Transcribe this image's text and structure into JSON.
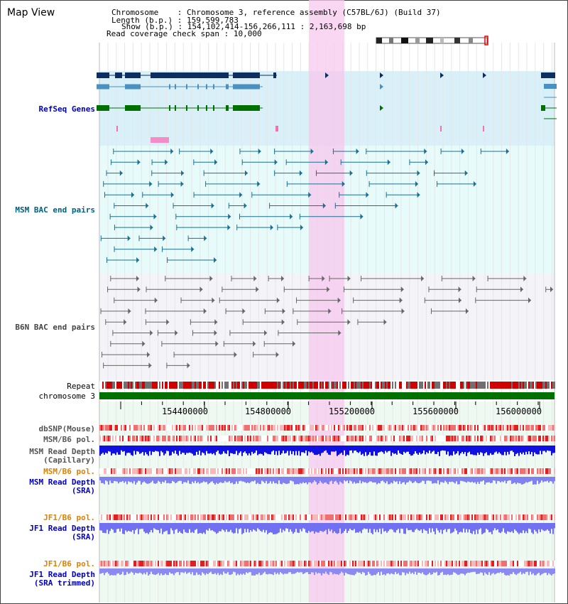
{
  "title": "Map View",
  "info": {
    "chromosome_key": "Chromosome",
    "chromosome_val": "Chromosome 3, reference assembly (C57BL/6J) (Build 37)",
    "length_key": "Length (b.p.)",
    "length_val": "159,599,783",
    "show_key": "Show (b.p.)",
    "show_val": "154,102,414-156,266,111 : 2,163,698 bp",
    "coverage_key": "Read coverage check span",
    "coverage_val": "10,000"
  },
  "tracks": {
    "refseq": "RefSeq Genes",
    "msm_bac": "MSM BAC end pairs",
    "b6n_bac": "B6N BAC end pairs",
    "repeat": "Repeat",
    "chromosome": "chromosome 3",
    "dbsnp": "dbSNP(Mouse)",
    "msm_b6_pol": "MSM/B6 pol.",
    "msm_depth_cap_1": "MSM Read Depth",
    "msm_depth_cap_2": "(Capillary)",
    "msm_b6_pol_sra": "MSM/B6 pol.",
    "msm_depth_sra_1": "MSM Read Depth",
    "msm_depth_sra_2": "(SRA)",
    "jf1_pol": "JF1/B6 pol.",
    "jf1_depth_1": "JF1 Read Depth",
    "jf1_depth_2": "(SRA)",
    "jf1_pol_trim": "JF1/B6 pol.",
    "jf1_trim_1": "JF1 Read Depth",
    "jf1_trim_2": "(SRA trimmed)"
  },
  "axis": {
    "ticks": [
      "154400000",
      "154800000",
      "155200000",
      "155600000",
      "156000000"
    ]
  },
  "colors": {
    "refseq_label": "#0000c0",
    "msm_label": "#006080",
    "b6n_label": "#444444",
    "sra_label": "#0000c0",
    "pol_label": "#e08000",
    "highlight": "#f7c8ee",
    "chromosome_bar": "#007000"
  }
}
